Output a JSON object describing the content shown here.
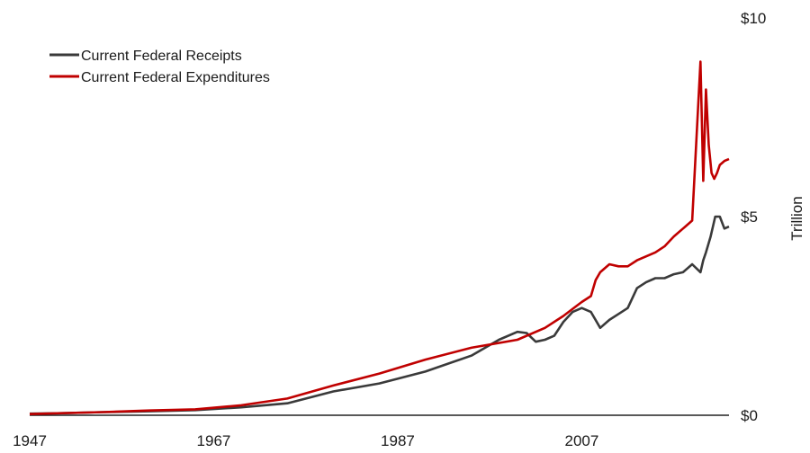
{
  "chart_data": {
    "type": "line",
    "ylabel": "Trillion",
    "xlim": [
      1947,
      2023
    ],
    "ylim": [
      0,
      10
    ],
    "x_ticks": [
      "1947",
      "1967",
      "1987",
      "2007"
    ],
    "x_tick_values": [
      1947,
      1967,
      1987,
      2007
    ],
    "y_ticks": [
      "$0",
      "$5",
      "$10"
    ],
    "y_tick_values": [
      0,
      5,
      10
    ],
    "grid": false,
    "legend_position": "top-left",
    "series": [
      {
        "name": "Current Federal Receipts",
        "color": "#3a3a3a",
        "x": [
          1947,
          1950,
          1955,
          1960,
          1965,
          1970,
          1975,
          1980,
          1985,
          1990,
          1995,
          1998,
          2000,
          2001,
          2002,
          2003,
          2004,
          2005,
          2006,
          2007,
          2008,
          2009,
          2010,
          2011,
          2012,
          2013,
          2014,
          2015,
          2016,
          2017,
          2018,
          2019,
          2019.9,
          2020.2,
          2020.5,
          2021,
          2021.5,
          2022,
          2022.5,
          2023
        ],
        "y": [
          0.04,
          0.05,
          0.08,
          0.1,
          0.13,
          0.2,
          0.3,
          0.6,
          0.8,
          1.1,
          1.5,
          1.9,
          2.1,
          2.07,
          1.85,
          1.9,
          2.0,
          2.35,
          2.6,
          2.7,
          2.6,
          2.2,
          2.4,
          2.55,
          2.7,
          3.2,
          3.35,
          3.45,
          3.45,
          3.55,
          3.6,
          3.8,
          3.6,
          3.9,
          4.1,
          4.5,
          5.0,
          5.0,
          4.7,
          4.75
        ]
      },
      {
        "name": "Current Federal Expenditures",
        "color": "#c00000",
        "x": [
          1947,
          1950,
          1955,
          1960,
          1965,
          1970,
          1975,
          1980,
          1985,
          1990,
          1995,
          2000,
          2003,
          2005,
          2007,
          2008,
          2008.5,
          2009,
          2010,
          2011,
          2012,
          2013,
          2014,
          2015,
          2016,
          2017,
          2018,
          2019,
          2019.9,
          2020.2,
          2020.5,
          2020.8,
          2021.1,
          2021.4,
          2021.7,
          2022,
          2022.5,
          2023
        ],
        "y": [
          0.03,
          0.05,
          0.08,
          0.12,
          0.15,
          0.25,
          0.42,
          0.75,
          1.05,
          1.4,
          1.7,
          1.9,
          2.2,
          2.5,
          2.85,
          3.0,
          3.4,
          3.6,
          3.8,
          3.75,
          3.75,
          3.9,
          4.0,
          4.1,
          4.25,
          4.5,
          4.7,
          4.9,
          8.9,
          5.9,
          8.2,
          6.8,
          6.1,
          5.95,
          6.1,
          6.3,
          6.4,
          6.45
        ]
      }
    ]
  }
}
